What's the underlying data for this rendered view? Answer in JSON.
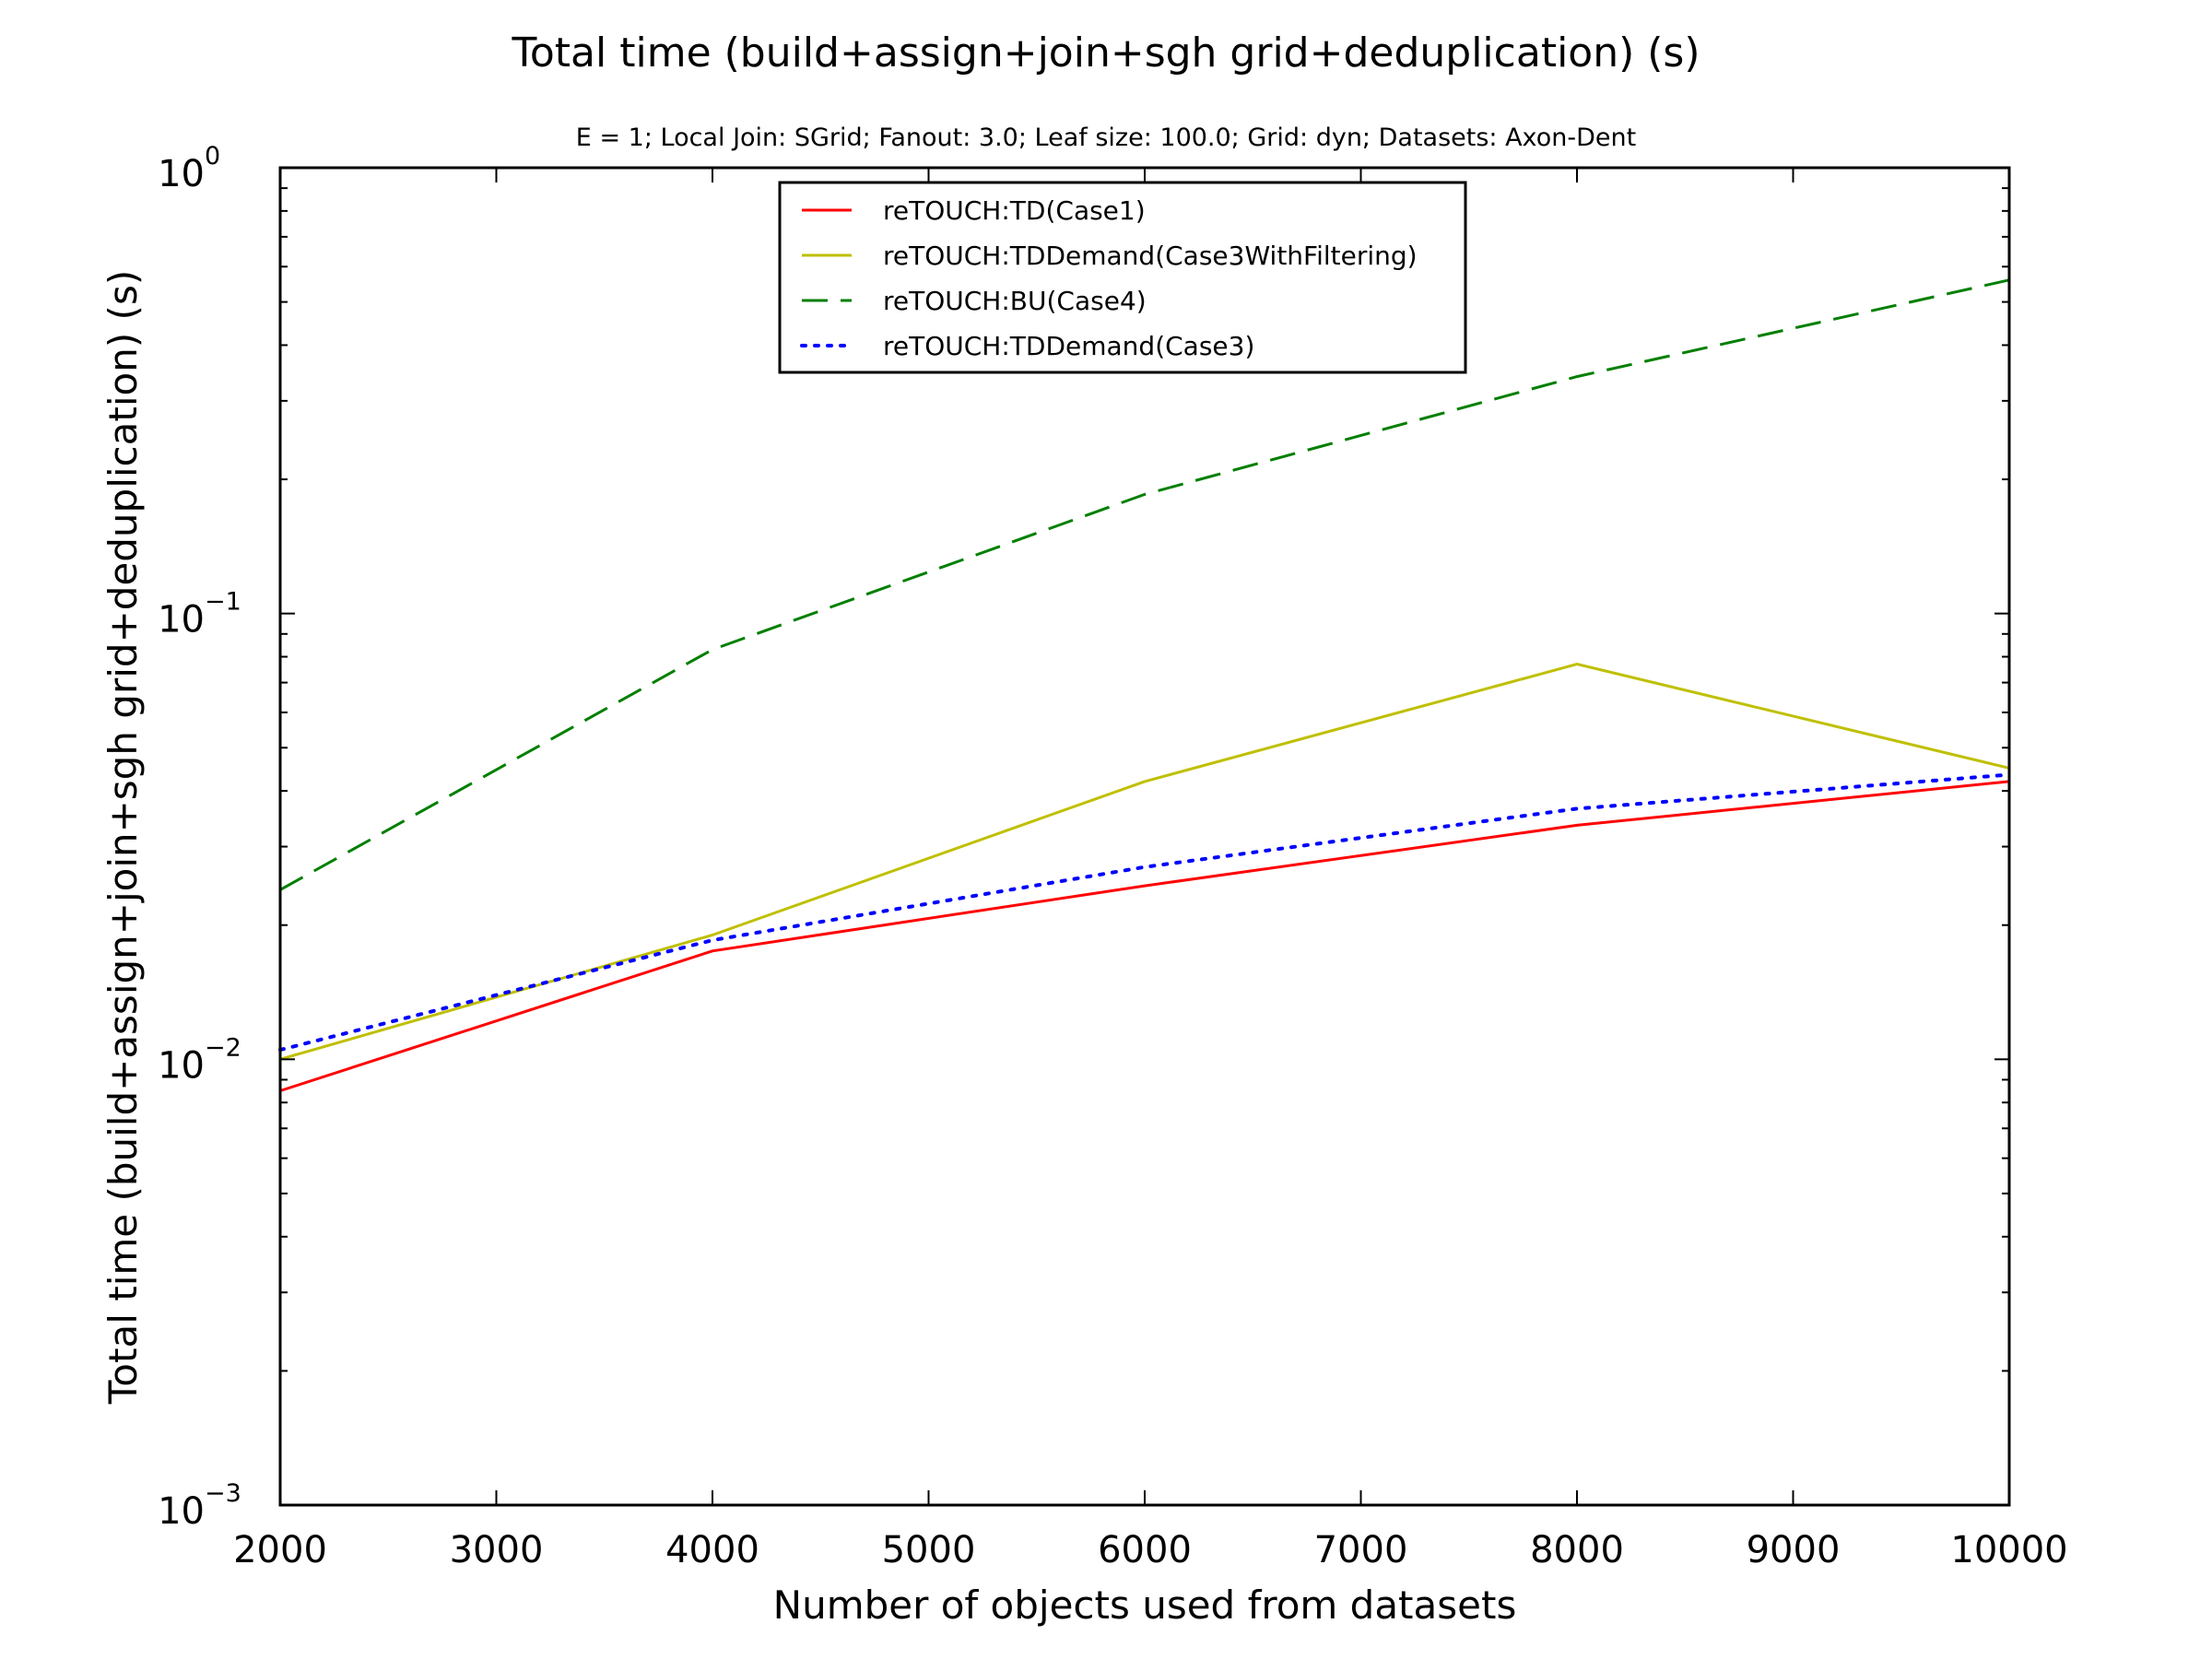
{
  "chart_data": {
    "type": "line",
    "title": "Total time (build+assign+join+sgh grid+deduplication) (s)",
    "subtitle": "E = 1; Local Join: SGrid; Fanout: 3.0; Leaf size: 100.0; Grid: dyn; Datasets: Axon-Dent",
    "xlabel": "Number of objects used from datasets",
    "ylabel": "Total time (build+assign+join+sgh grid+deduplication) (s)",
    "xlim": [
      2000,
      10000
    ],
    "ylim": [
      0.001,
      1
    ],
    "yscale": "log",
    "x_ticks": [
      2000,
      3000,
      4000,
      5000,
      6000,
      7000,
      8000,
      9000,
      10000
    ],
    "x_tick_labels": [
      "2000",
      "3000",
      "4000",
      "5000",
      "6000",
      "7000",
      "8000",
      "9000",
      "10000"
    ],
    "y_ticks": [
      {
        "value": 1,
        "base": "10",
        "exp": "0"
      },
      {
        "value": 0.1,
        "base": "10",
        "exp": "−1"
      },
      {
        "value": 0.01,
        "base": "10",
        "exp": "−2"
      },
      {
        "value": 0.001,
        "base": "10",
        "exp": "−3"
      }
    ],
    "grid": false,
    "legend_position": "upper-center",
    "series": [
      {
        "name": "reTOUCH:TD(Case1)",
        "color": "#ff0000",
        "dash": "solid",
        "x": [
          2000,
          4000,
          6000,
          8000,
          10000
        ],
        "y": [
          0.0085,
          0.0175,
          0.0245,
          0.0335,
          0.042
        ]
      },
      {
        "name": "reTOUCH:TDDemand(Case3WithFiltering)",
        "color": "#bfbf00",
        "dash": "solid",
        "x": [
          2000,
          4000,
          6000,
          8000,
          10000
        ],
        "y": [
          0.01,
          0.019,
          0.042,
          0.077,
          0.045
        ]
      },
      {
        "name": "reTOUCH:BU(Case4)",
        "color": "#007f00",
        "dash": "dashed",
        "x": [
          2000,
          4000,
          6000,
          8000,
          10000
        ],
        "y": [
          0.024,
          0.083,
          0.185,
          0.34,
          0.56
        ]
      },
      {
        "name": "reTOUCH:TDDemand(Case3)",
        "color": "#0000ff",
        "dash": "dotted",
        "x": [
          2000,
          4000,
          6000,
          8000,
          10000
        ],
        "y": [
          0.0105,
          0.0185,
          0.027,
          0.0365,
          0.0435
        ]
      }
    ]
  }
}
